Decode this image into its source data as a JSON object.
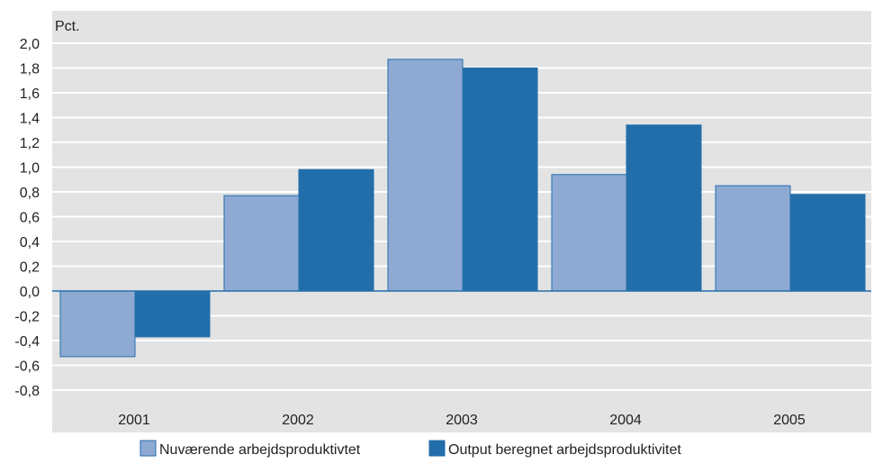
{
  "chart_data": {
    "type": "bar",
    "title": "",
    "unit_label": "Pct.",
    "xlabel": "",
    "ylabel": "",
    "categories": [
      "2001",
      "2002",
      "2003",
      "2004",
      "2005"
    ],
    "series": [
      {
        "name": "Nuværende arbejdsproduktivtet",
        "values": [
          -0.53,
          0.77,
          1.87,
          0.94,
          0.85
        ],
        "color": "#8eaad2"
      },
      {
        "name": "Output beregnet arbejdsproduktivitet",
        "values": [
          -0.37,
          0.98,
          1.8,
          1.34,
          0.78
        ],
        "color": "#226eab"
      }
    ],
    "ylim": [
      -0.9,
      2.1
    ],
    "yticks": [
      2.0,
      1.8,
      1.6,
      1.4,
      1.2,
      1.0,
      0.8,
      0.6,
      0.4,
      0.2,
      0.0,
      -0.2,
      -0.4,
      -0.6,
      -0.8
    ],
    "ytick_labels": [
      "2,0",
      "1,8",
      "1,6",
      "1,4",
      "1,2",
      "1,0",
      "0,8",
      "0,6",
      "0,4",
      "0,2",
      "0,0",
      "-0,2",
      "-0,4",
      "-0,6",
      "-0,8"
    ],
    "grid": true,
    "legend_position": "bottom",
    "colors": {
      "plot_background": "#e3e3e3",
      "grid": "#ffffff",
      "zero_line": "#226eab",
      "bar_edge": "#226eab"
    }
  }
}
